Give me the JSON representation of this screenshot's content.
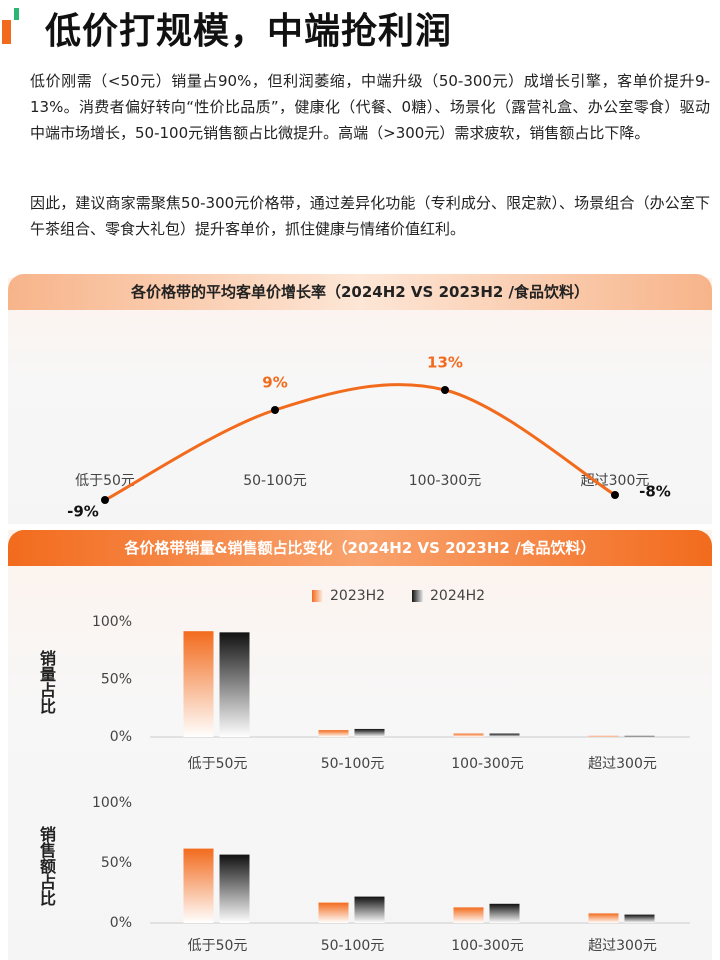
{
  "title": "低价打规模，中端抢利润",
  "paragraphs": [
    "低价刚需（<50元）销量占90%，但利润萎缩，中端升级（50-300元）成增长引擎，客单价提升9-13%。消费者偏好转向“性价比品质”，健康化（代餐、0糖）、场景化（露营礼盒、办公室零食）驱动中端市场增长，50-100元销售额占比微提升。高端（>300元）需求疲软，销售额占比下降。",
    "因此，建议商家需聚焦50-300元价格带，通过差异化功能（专利成分、限定款）、场景组合（办公室下午茶组合、零食大礼包）提升客单价，抓住健康与情绪价值红利。"
  ],
  "chart_data": [
    {
      "type": "line",
      "title": "各价格带的平均客单价增长率（2024H2 VS 2023H2 /食品饮料）",
      "categories": [
        "低于50元",
        "50-100元",
        "100-300元",
        "超过300元"
      ],
      "values": [
        -9,
        9,
        13,
        -8
      ],
      "value_labels": [
        "-9%",
        "9%",
        "13%",
        "-8%"
      ],
      "color": "#f26b1d"
    },
    {
      "type": "bar",
      "title": "各价格带销量&销售额占比变化（2024H2 VS 2023H2 /食品饮料）",
      "y_label": "销量占比",
      "categories": [
        "低于50元",
        "50-100元",
        "100-300元",
        "超过300元"
      ],
      "series": [
        {
          "name": "2023H2",
          "color": "#f26b1d",
          "values": [
            92,
            6,
            3,
            1
          ]
        },
        {
          "name": "2024H2",
          "color": "#111111",
          "values": [
            91,
            7,
            3,
            1
          ]
        }
      ],
      "ylim": [
        0,
        100
      ],
      "yticks": [
        {
          "value": 0,
          "label": "0%"
        },
        {
          "value": 50,
          "label": "50%"
        },
        {
          "value": 100,
          "label": "100%"
        }
      ]
    },
    {
      "type": "bar",
      "y_label": "销售额占比",
      "categories": [
        "低于50元",
        "50-100元",
        "100-300元",
        "超过300元"
      ],
      "series": [
        {
          "color": "#f26b1d",
          "values": [
            62,
            17,
            13,
            8
          ]
        },
        {
          "color": "#111111",
          "values": [
            57,
            22,
            16,
            7
          ]
        }
      ],
      "ylim": [
        0,
        100
      ],
      "yticks": [
        {
          "value": 0,
          "label": "0%"
        },
        {
          "value": 50,
          "label": "50%"
        },
        {
          "value": 100,
          "label": "100%"
        }
      ]
    }
  ]
}
